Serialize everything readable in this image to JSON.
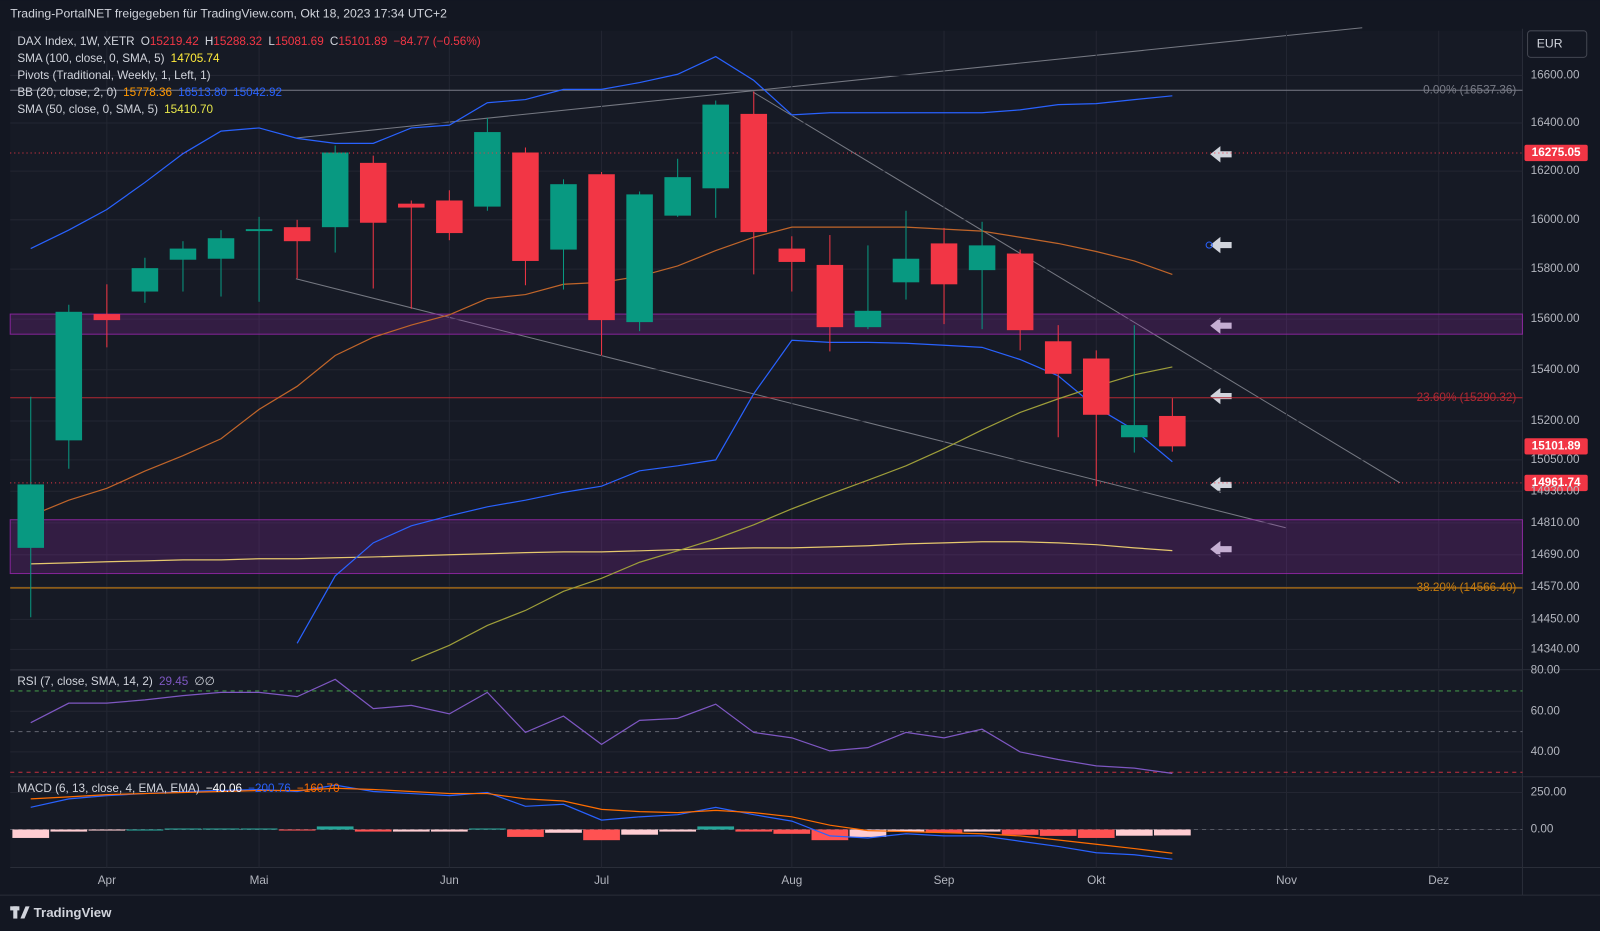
{
  "header": {
    "title": "Trading-PortalNET freigegeben für TradingView.com, Okt 18, 2023 17:34 UTC+2",
    "currency": "EUR",
    "brand": "TradingView"
  },
  "chart_data": [
    {
      "type": "candlestick",
      "legend": [
        [
          {
            "text": "DAX Index, 1W, XETR",
            "color": "#d1d4dc"
          },
          {
            "text": "O",
            "color": "#d1d4dc"
          },
          {
            "text": "15219.42",
            "color": "#f23645"
          },
          {
            "text": "H",
            "color": "#d1d4dc"
          },
          {
            "text": "15288.32",
            "color": "#f23645"
          },
          {
            "text": "L",
            "color": "#d1d4dc"
          },
          {
            "text": "15081.69",
            "color": "#f23645"
          },
          {
            "text": "C",
            "color": "#d1d4dc"
          },
          {
            "text": "15101.89",
            "color": "#f23645"
          },
          {
            "text": "−84.77 (−0.56%)",
            "color": "#f23645"
          }
        ],
        [
          {
            "text": "SMA (100, close, 0, SMA, 5)",
            "color": "#d1d4dc"
          },
          {
            "text": "14705.74",
            "color": "#ffeb3b"
          }
        ],
        [
          {
            "text": "Pivots (Traditional, Weekly, 1, Left, 1)",
            "color": "#d1d4dc"
          }
        ],
        [
          {
            "text": "BB (20, close, 2, 0)",
            "color": "#d1d4dc"
          },
          {
            "text": "15778.36",
            "color": "#ff9800"
          },
          {
            "text": "16513.80",
            "color": "#2962ff"
          },
          {
            "text": "15042.92",
            "color": "#2962ff"
          }
        ],
        [
          {
            "text": "SMA (50, close, 0, SMA, 5)",
            "color": "#d1d4dc"
          },
          {
            "text": "15410.70",
            "color": "#e6e64a"
          }
        ]
      ],
      "xlim": [
        -0.54,
        39.2
      ],
      "xticks": [
        {
          "value": 2,
          "label": "Apr"
        },
        {
          "value": 6,
          "label": "Mai"
        },
        {
          "value": 11,
          "label": "Jun"
        },
        {
          "value": 15,
          "label": "Jul"
        },
        {
          "value": 20,
          "label": "Aug"
        },
        {
          "value": 24,
          "label": "Sep"
        },
        {
          "value": 28,
          "label": "Okt"
        },
        {
          "value": 33,
          "label": "Nov"
        },
        {
          "value": 37,
          "label": "Dez"
        }
      ],
      "ylim": [
        14270,
        16790
      ],
      "log_scale": true,
      "yticks": [
        {
          "value": 16600,
          "label": "16600.00"
        },
        {
          "value": 16400,
          "label": "16400.00"
        },
        {
          "value": 16200,
          "label": "16200.00"
        },
        {
          "value": 16000,
          "label": "16000.00"
        },
        {
          "value": 15800,
          "label": "15800.00"
        },
        {
          "value": 15600,
          "label": "15600.00"
        },
        {
          "value": 15400,
          "label": "15400.00"
        },
        {
          "value": 15200,
          "label": "15200.00"
        },
        {
          "value": 15050,
          "label": "15050.00"
        },
        {
          "value": 14930,
          "label": "14930.00"
        },
        {
          "value": 14810,
          "label": "14810.00"
        },
        {
          "value": 14690,
          "label": "14690.00"
        },
        {
          "value": 14570,
          "label": "14570.00"
        },
        {
          "value": 14450,
          "label": "14450.00"
        },
        {
          "value": 14340,
          "label": "14340.00"
        }
      ],
      "grid": true,
      "up_color": "#089981",
      "down_color": "#f23645",
      "open": [
        14716,
        15125,
        15620,
        15710,
        15838,
        15842,
        15954,
        15970,
        15970,
        16234,
        16066,
        16079,
        16054,
        16277,
        15879,
        16187,
        15588,
        16017,
        16129,
        16438,
        15883,
        15817,
        15568,
        15747,
        15904,
        15796,
        15863,
        15512,
        15444,
        15137,
        15219.42
      ],
      "high": [
        15294,
        15657,
        15739,
        15846,
        15913,
        15958,
        16012,
        16000,
        16306,
        16264,
        16079,
        16121,
        16421,
        16298,
        16166,
        16196,
        16116,
        16251,
        16494,
        16532,
        15933,
        15938,
        15896,
        16037,
        15967,
        15992,
        15879,
        15576,
        15476,
        15576,
        15288.32
      ],
      "low": [
        14458,
        15016,
        15488,
        15665,
        15710,
        15690,
        15669,
        15763,
        15867,
        15722,
        15641,
        15917,
        16037,
        15735,
        15718,
        15456,
        15552,
        16012,
        16008,
        15779,
        15710,
        15472,
        15560,
        15678,
        15580,
        15560,
        15476,
        15137,
        14949,
        15078,
        15081.69
      ],
      "close": [
        14956,
        15629,
        15596,
        15804,
        15883,
        15925,
        15962,
        15913,
        16277,
        15988,
        16050,
        15946,
        16362,
        15833,
        16146,
        15596,
        16104,
        16175,
        16477,
        15950,
        15829,
        15568,
        15633,
        15842,
        15739,
        15896,
        15556,
        15384,
        15224,
        15184,
        15101.89
      ],
      "series": [
        {
          "color": "#e6c86e",
          "values": [
            14656,
            14660,
            14664,
            14667,
            14671,
            14671,
            14675,
            14675,
            14679,
            14682,
            14686,
            14690,
            14694,
            14698,
            14701,
            14701,
            14705,
            14709,
            14713,
            14716,
            14716,
            14720,
            14724,
            14731,
            14735,
            14739,
            14739,
            14735,
            14728,
            14716,
            14705.74
          ]
        },
        {
          "color": "#c0652a",
          "values": [
            14837,
            14896,
            14941,
            15007,
            15066,
            15131,
            15245,
            15335,
            15456,
            15528,
            15576,
            15617,
            15682,
            15698,
            15739,
            15747,
            15771,
            15813,
            15875,
            15929,
            15970,
            15970,
            15970,
            15970,
            15962,
            15954,
            15929,
            15904,
            15871,
            15833,
            15778.36
          ]
        },
        {
          "color": "#2962ff",
          "values": [
            15883,
            15958,
            16042,
            16153,
            16272,
            16366,
            16379,
            16336,
            16315,
            16315,
            16379,
            16391,
            16485,
            16498,
            16541,
            16541,
            16570,
            16605,
            16680,
            16579,
            16434,
            16443,
            16443,
            16443,
            16443,
            16443,
            16455,
            16477,
            16481,
            16498,
            16513.8
          ]
        },
        {
          "color": "#2962ff",
          "values": [
            null,
            null,
            null,
            null,
            null,
            null,
            null,
            14362,
            14611,
            14735,
            14799,
            14837,
            14871,
            14896,
            14926,
            14949,
            15008,
            15027,
            15050,
            15306,
            15516,
            15508,
            15508,
            15504,
            15496,
            15488,
            15440,
            15376,
            15253,
            15165,
            15042.92
          ]
        },
        {
          "color": "#9e9e3a",
          "values": [
            null,
            null,
            null,
            null,
            null,
            null,
            null,
            null,
            null,
            null,
            14297,
            14355,
            14428,
            14483,
            14554,
            14602,
            14662,
            14705,
            14750,
            14803,
            14863,
            14919,
            14972,
            15027,
            15093,
            15165,
            15233,
            15286,
            15335,
            15380,
            15410.7
          ]
        }
      ],
      "levels": [
        {
          "label": "0.00% (16537.36)",
          "value": 16537.36,
          "color": "#787b86"
        },
        {
          "label": "23.60% (15290.32)",
          "value": 15290.32,
          "color": "#b22833"
        },
        {
          "label": "38.20% (14566.40)",
          "value": 14566.4,
          "color": "#c77c0e"
        }
      ],
      "price_tags": [
        {
          "value": 16275.05,
          "color": "#f23645",
          "dotted": true
        },
        {
          "value": 15101.89,
          "color": "#f23645",
          "dotted": false
        },
        {
          "value": 14961.74,
          "color": "#f23645",
          "dotted": true
        }
      ],
      "zones": [
        {
          "from": 15540,
          "to": 15620
        },
        {
          "from": 14620,
          "to": 14822
        }
      ],
      "zone_color": "#9c27b0"
    },
    {
      "type": "line",
      "legend": [
        [
          {
            "text": "RSI (7, close, SMA, 14, 2)",
            "color": "#d1d4dc"
          },
          {
            "text": "29.45",
            "color": "#7e57c2"
          },
          {
            "text": "∅",
            "color": "#d1d4dc"
          },
          {
            "text": "∅",
            "color": "#d1d4dc"
          }
        ]
      ],
      "xlim": [
        -0.54,
        39.2
      ],
      "ylim": [
        28.3,
        80
      ],
      "yticks": [
        {
          "value": 80,
          "label": "80.00"
        },
        {
          "value": 60,
          "label": "60.00"
        },
        {
          "value": 40,
          "label": "40.00"
        }
      ],
      "hlines": [
        {
          "value": 70,
          "color": "#4caf50"
        },
        {
          "value": 50,
          "color": "#787b86"
        },
        {
          "value": 30,
          "color": "#f23645"
        }
      ],
      "series": [
        {
          "color": "#7e57c2",
          "values": [
            54.4,
            64,
            64,
            65.6,
            67.7,
            69.3,
            69.3,
            67.2,
            75.7,
            61.3,
            62.9,
            58.7,
            69.3,
            49.6,
            57.6,
            43.7,
            55.5,
            56.5,
            63.5,
            49.6,
            46.9,
            40.5,
            42.1,
            49.6,
            46.9,
            51.2,
            40,
            36.3,
            33.1,
            32,
            29.45
          ]
        }
      ]
    },
    {
      "type": "macd",
      "legend": [
        [
          {
            "text": "MACD (6, 13, close, 4, EMA, EMA)",
            "color": "#d1d4dc"
          },
          {
            "text": "−40.06",
            "color": "#ffffff"
          },
          {
            "text": "−200.76",
            "color": "#2962ff"
          },
          {
            "text": "−160.70",
            "color": "#ff6d00"
          }
        ]
      ],
      "xlim": [
        -0.54,
        39.2
      ],
      "ylim": [
        -257,
        350
      ],
      "yticks": [
        {
          "value": 250,
          "label": "250.00"
        },
        {
          "value": 0,
          "label": "0.00"
        }
      ],
      "histogram": [
        -57,
        -14,
        -7,
        0,
        7,
        7,
        7,
        -7,
        21,
        -14,
        -14,
        -14,
        7,
        -50,
        -22,
        -72,
        -35,
        -14,
        21,
        -14,
        -29,
        -72,
        -50,
        -15,
        -22,
        -14,
        -36,
        -43,
        -57,
        -42,
        -40.06
      ],
      "histogram_colors": {
        "up_rise": "#26a69a",
        "up_fall": "#b2dfdb",
        "down_fall": "#ff5252",
        "down_rise": "#ffcdd2"
      },
      "series": [
        {
          "color": "#2962ff",
          "values": [
            150,
            207,
            229,
            243,
            257,
            264,
            271,
            257,
            300,
            257,
            243,
            229,
            250,
            157,
            171,
            64,
            86,
            100,
            150,
            100,
            57,
            -43,
            -57,
            -29,
            -43,
            -43,
            -79,
            -114,
            -157,
            -171,
            -200.76
          ]
        },
        {
          "color": "#ff6d00",
          "values": [
            207,
            221,
            236,
            243,
            250,
            257,
            264,
            264,
            279,
            271,
            257,
            243,
            243,
            207,
            193,
            136,
            121,
            114,
            129,
            114,
            86,
            29,
            -7,
            -14,
            -21,
            -29,
            -43,
            -71,
            -100,
            -129,
            -160.7
          ]
        }
      ]
    }
  ]
}
